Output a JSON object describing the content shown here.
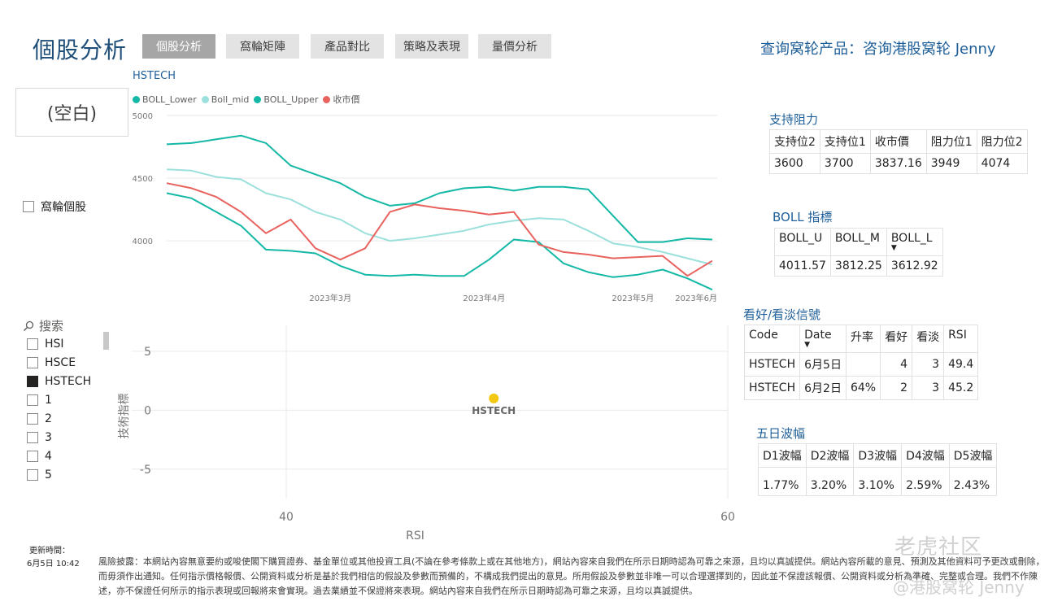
{
  "page_title": "個股分析",
  "tabs": [
    {
      "label": "個股分析",
      "active": true
    },
    {
      "label": "窩輪矩陣",
      "active": false
    },
    {
      "label": "產品對比",
      "active": false
    },
    {
      "label": "策略及表現",
      "active": false
    },
    {
      "label": "量價分析",
      "active": false
    }
  ],
  "query_link": "查询窝轮产品：咨询港股窝轮 Jenny",
  "slicer_blank": "(空白)",
  "warrant_checkbox": {
    "label": "窩輪個股",
    "checked": false
  },
  "search": {
    "icon": "search-icon",
    "placeholder": "搜索"
  },
  "stock_list": [
    {
      "label": "HSI",
      "checked": false
    },
    {
      "label": "HSCE",
      "checked": false
    },
    {
      "label": "HSTECH",
      "checked": true
    },
    {
      "label": "1",
      "checked": false
    },
    {
      "label": "2",
      "checked": false
    },
    {
      "label": "3",
      "checked": false
    },
    {
      "label": "4",
      "checked": false
    },
    {
      "label": "5",
      "checked": false
    }
  ],
  "chart_data": [
    {
      "type": "line",
      "title": "HSTECH",
      "legend": [
        "BOLL_Lower",
        "Boll_mid",
        "BOLL_Upper",
        "收市價"
      ],
      "colors": {
        "BOLL_Lower": "#14b8a6",
        "Boll_mid": "#9be0dc",
        "BOLL_Upper": "#14b8a6",
        "收市價": "#e8625e"
      },
      "x_ticks": [
        "2023年3月",
        "2023年4月",
        "2023年5月",
        "2023年6月"
      ],
      "y_ticks": [
        "5000",
        "4500",
        "4000"
      ],
      "ylim": [
        3650,
        5000
      ],
      "x_range": [
        "2023-02-15",
        "2023-06-06"
      ],
      "x": [
        "2023-02-15",
        "2023-02-20",
        "2023-02-25",
        "2023-03-02",
        "2023-03-07",
        "2023-03-12",
        "2023-03-17",
        "2023-03-22",
        "2023-03-27",
        "2023-04-01",
        "2023-04-06",
        "2023-04-11",
        "2023-04-16",
        "2023-04-21",
        "2023-04-26",
        "2023-05-01",
        "2023-05-06",
        "2023-05-11",
        "2023-05-16",
        "2023-05-21",
        "2023-05-26",
        "2023-05-31",
        "2023-06-05"
      ],
      "series": [
        {
          "name": "BOLL_Upper",
          "values": [
            4770,
            4780,
            4810,
            4840,
            4780,
            4600,
            4530,
            4460,
            4350,
            4280,
            4300,
            4380,
            4420,
            4430,
            4400,
            4430,
            4430,
            4410,
            4200,
            3990,
            3990,
            4020,
            4010
          ]
        },
        {
          "name": "Boll_mid",
          "values": [
            4570,
            4560,
            4510,
            4490,
            4380,
            4330,
            4230,
            4170,
            4060,
            4000,
            4020,
            4050,
            4080,
            4130,
            4160,
            4180,
            4170,
            4080,
            3980,
            3950,
            3910,
            3860,
            3810
          ]
        },
        {
          "name": "BOLL_Lower",
          "values": [
            4380,
            4340,
            4230,
            4120,
            3930,
            3920,
            3900,
            3800,
            3730,
            3720,
            3730,
            3720,
            3720,
            3850,
            4010,
            3990,
            3820,
            3750,
            3710,
            3730,
            3770,
            3700,
            3610
          ]
        },
        {
          "name": "收市價",
          "values": [
            4460,
            4420,
            4350,
            4230,
            4060,
            4170,
            3940,
            3850,
            3940,
            4230,
            4290,
            4260,
            4240,
            4210,
            4230,
            3970,
            3910,
            3890,
            3860,
            3870,
            3880,
            3720,
            3840
          ]
        }
      ]
    },
    {
      "type": "scatter",
      "xlabel": "RSI",
      "ylabel": "技術指標",
      "x_ticks": [
        "40",
        "60"
      ],
      "y_ticks": [
        "5",
        "0",
        "-5"
      ],
      "xlim": [
        33,
        60
      ],
      "ylim": [
        -7.5,
        7.2
      ],
      "points": [
        {
          "label": "HSTECH",
          "x": 49.4,
          "y": 1,
          "color": "#f2c811"
        }
      ]
    }
  ],
  "support_resistance": {
    "title": "支持阻力",
    "headers": [
      "支持位2",
      "支持位1",
      "收市價",
      "阻力位1",
      "阻力位2"
    ],
    "row": [
      "3600",
      "3700",
      "3837.16",
      "3949",
      "4074"
    ]
  },
  "boll": {
    "title": "BOLL 指標",
    "headers": [
      "BOLL_U",
      "BOLL_M",
      "BOLL_L"
    ],
    "row": [
      "4011.57",
      "3812.25",
      "3612.92"
    ]
  },
  "signals": {
    "title": "看好/看淡信號",
    "headers": [
      "Code",
      "Date",
      "升率",
      "看好",
      "看淡",
      "RSI"
    ],
    "rows": [
      [
        "HSTECH",
        "6月5日",
        "",
        "4",
        "3",
        "49.4"
      ],
      [
        "HSTECH",
        "6月2日",
        "64%",
        "2",
        "3",
        "45.2"
      ]
    ]
  },
  "volatility": {
    "title": "五日波幅",
    "headers": [
      "D1波幅",
      "D2波幅",
      "D3波幅",
      "D4波幅",
      "D5波幅"
    ],
    "row": [
      "1.77%",
      "3.20%",
      "3.10%",
      "2.59%",
      "2.43%"
    ]
  },
  "update": {
    "label": "更新時間：",
    "value": "6月5日 10:42"
  },
  "disclaimer": "風險披露：本網站內容無意要約或唆使閣下購買證券、基金單位或其他投資工具(不論在參考條款上或在其他地方)，網站內容來自我們在所示日期時認為可靠之來源，且均以真誠提供。網站內容所載的意見、預測及其他資料可予更改或刪除，而毋須作出通知。任何指示價格報價、公開資料或分析是基於我們相信的假設及參數而預備的，不構成我們提出的意見。所用假設及參數並非唯一可以合理選擇到的，因此並不保證該報價、公開資料或分析為準確、完整或合理。我們不作陳述，亦不保證任何所示的指示表現或回報將來會實現。過去業績並不保證將來表現。網站內容來自我們在所示日期時認為可靠之來源，且均以真誠提供。",
  "watermark": {
    "line1": "老虎社区",
    "line2": "@港股窝轮 Jenny"
  }
}
